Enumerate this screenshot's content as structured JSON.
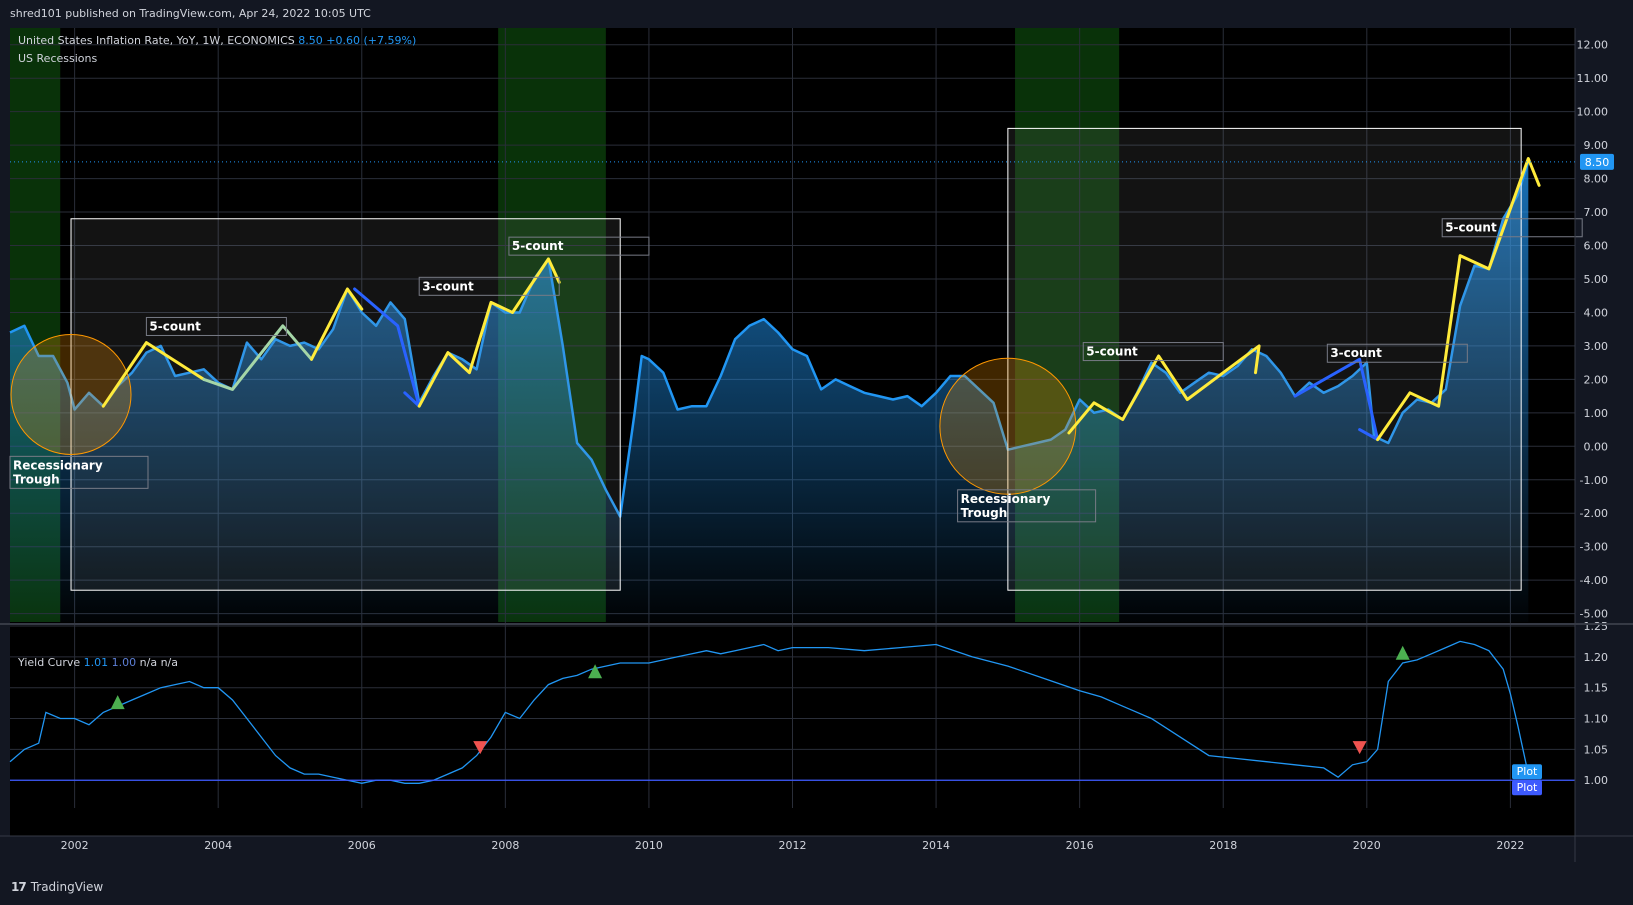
{
  "header": {
    "publisher": "shred101 published on TradingView.com, Apr 24, 2022 10:05 UTC"
  },
  "main_legend": {
    "symbol": "United States Inflation Rate, YoY, 1W, ECONOMICS",
    "last": "8.50",
    "change": "+0.60 (+7.59%)",
    "overlay": "US Recessions"
  },
  "yield_legend": {
    "name": "Yield Curve",
    "v1": "1.01",
    "v2": "1.00",
    "v3": "n/a",
    "v4": "n/a"
  },
  "footer": {
    "brand": "TradingView"
  },
  "colors": {
    "line": "#2196f3",
    "recession": "#0b3b0b",
    "wave_yellow": "#ffeb3b",
    "wave_green": "#a5d6a7",
    "wave_blue": "#2962ff",
    "up_marker": "#4caf50",
    "down_marker": "#ef5350",
    "price_label": "#2196f3"
  },
  "chart_data": [
    {
      "type": "area",
      "title": "United States Inflation Rate, YoY",
      "xlim": [
        2001.1,
        2022.9
      ],
      "ylim": [
        -5.25,
        12.5
      ],
      "y_ticks": [
        "12.00",
        "11.00",
        "10.00",
        "9.00",
        "8.00",
        "7.00",
        "6.00",
        "5.00",
        "4.00",
        "3.00",
        "2.00",
        "1.00",
        "0.00",
        "-1.00",
        "-2.00",
        "-3.00",
        "-4.00",
        "-5.00"
      ],
      "x_ticks": [
        "2002",
        "2004",
        "2006",
        "2008",
        "2010",
        "2012",
        "2014",
        "2016",
        "2018",
        "2020",
        "2022"
      ],
      "last_value_label": "8.50",
      "last_value": 8.5,
      "recessions": [
        [
          2001.1,
          2001.8
        ],
        [
          2007.9,
          2009.4
        ],
        [
          2015.1,
          2016.55
        ]
      ],
      "series": [
        {
          "x": [
            2001.1,
            2001.3,
            2001.5,
            2001.7,
            2001.9,
            2002.0,
            2002.2,
            2002.4,
            2002.6,
            2002.8,
            2003.0,
            2003.2,
            2003.4,
            2003.6,
            2003.8,
            2004.0,
            2004.2,
            2004.4,
            2004.6,
            2004.8,
            2005.0,
            2005.2,
            2005.4,
            2005.6,
            2005.8,
            2006.0,
            2006.2,
            2006.4,
            2006.6,
            2006.8,
            2007.0,
            2007.2,
            2007.4,
            2007.6,
            2007.8,
            2008.0,
            2008.2,
            2008.4,
            2008.6,
            2008.8,
            2009.0,
            2009.2,
            2009.4,
            2009.6,
            2009.8,
            2009.9,
            2010.0,
            2010.2,
            2010.4,
            2010.6,
            2010.8,
            2011.0,
            2011.2,
            2011.4,
            2011.6,
            2011.8,
            2012.0,
            2012.2,
            2012.4,
            2012.6,
            2012.8,
            2013.0,
            2013.2,
            2013.4,
            2013.6,
            2013.8,
            2014.0,
            2014.2,
            2014.4,
            2014.6,
            2014.8,
            2015.0,
            2015.2,
            2015.4,
            2015.6,
            2015.8,
            2016.0,
            2016.2,
            2016.4,
            2016.6,
            2016.8,
            2017.0,
            2017.2,
            2017.4,
            2017.6,
            2017.8,
            2018.0,
            2018.2,
            2018.4,
            2018.6,
            2018.8,
            2019.0,
            2019.2,
            2019.4,
            2019.6,
            2019.8,
            2020.0,
            2020.1,
            2020.3,
            2020.5,
            2020.7,
            2020.9,
            2021.1,
            2021.3,
            2021.5,
            2021.7,
            2021.9,
            2022.1,
            2022.25
          ],
          "values": [
            3.4,
            3.6,
            2.7,
            2.7,
            1.9,
            1.1,
            1.6,
            1.2,
            1.8,
            2.2,
            2.8,
            3.0,
            2.1,
            2.2,
            2.3,
            1.9,
            1.7,
            3.1,
            2.6,
            3.2,
            3.0,
            3.1,
            2.9,
            3.5,
            4.7,
            4.0,
            3.6,
            4.3,
            3.8,
            1.3,
            2.1,
            2.8,
            2.6,
            2.3,
            4.3,
            4.0,
            4.0,
            5.0,
            5.6,
            3.0,
            0.1,
            -0.4,
            -1.3,
            -2.1,
            1.0,
            2.7,
            2.6,
            2.2,
            1.1,
            1.2,
            1.2,
            2.1,
            3.2,
            3.6,
            3.8,
            3.4,
            2.9,
            2.7,
            1.7,
            2.0,
            1.8,
            1.6,
            1.5,
            1.4,
            1.5,
            1.2,
            1.6,
            2.1,
            2.1,
            1.7,
            1.3,
            -0.1,
            0.0,
            0.1,
            0.2,
            0.5,
            1.4,
            1.0,
            1.1,
            0.8,
            1.6,
            2.5,
            2.2,
            1.6,
            1.9,
            2.2,
            2.1,
            2.4,
            2.9,
            2.7,
            2.2,
            1.5,
            1.9,
            1.6,
            1.8,
            2.1,
            2.5,
            0.3,
            0.1,
            1.0,
            1.4,
            1.3,
            1.7,
            4.2,
            5.4,
            5.3,
            6.8,
            7.5,
            8.5
          ]
        }
      ],
      "annotations": [
        {
          "text": "5-count",
          "x": 2003.0,
          "y": 3.85
        },
        {
          "text": "3-count",
          "x": 2006.8,
          "y": 5.05
        },
        {
          "text": "5-count",
          "x": 2008.05,
          "y": 6.25
        },
        {
          "text": "5-count",
          "x": 2016.05,
          "y": 3.1
        },
        {
          "text": "3-count",
          "x": 2019.45,
          "y": 3.05
        },
        {
          "text": "5-count",
          "x": 2021.05,
          "y": 6.8
        },
        {
          "text": "Recessionary\nTrough",
          "x": 2001.1,
          "y": -0.3
        },
        {
          "text": "Recessionary\nTrough",
          "x": 2014.3,
          "y": -1.3
        }
      ]
    },
    {
      "type": "line",
      "title": "Yield Curve",
      "xlim": [
        2001.1,
        2022.9
      ],
      "ylim": [
        0.955,
        1.25
      ],
      "y_ticks": [
        "1.25",
        "1.20",
        "1.15",
        "1.10",
        "1.05",
        "1.00"
      ],
      "baseline": 1.0,
      "end_labels": [
        "Plot",
        "Plot"
      ],
      "series": [
        {
          "x": [
            2001.1,
            2001.3,
            2001.5,
            2001.6,
            2001.8,
            2002.0,
            2002.2,
            2002.4,
            2002.6,
            2002.8,
            2003.0,
            2003.2,
            2003.4,
            2003.6,
            2003.8,
            2004.0,
            2004.2,
            2004.4,
            2004.6,
            2004.8,
            2005.0,
            2005.2,
            2005.4,
            2005.6,
            2005.8,
            2006.0,
            2006.2,
            2006.4,
            2006.6,
            2006.8,
            2007.0,
            2007.2,
            2007.4,
            2007.6,
            2007.8,
            2008.0,
            2008.2,
            2008.4,
            2008.6,
            2008.8,
            2009.0,
            2009.2,
            2009.4,
            2009.6,
            2009.8,
            2010.0,
            2010.2,
            2010.4,
            2010.6,
            2010.8,
            2011.0,
            2011.2,
            2011.4,
            2011.6,
            2011.8,
            2012.0,
            2012.5,
            2013.0,
            2013.5,
            2014.0,
            2014.5,
            2015.0,
            2015.5,
            2016.0,
            2016.3,
            2016.6,
            2017.0,
            2017.4,
            2017.8,
            2018.2,
            2018.6,
            2019.0,
            2019.4,
            2019.6,
            2019.8,
            2020.0,
            2020.15,
            2020.3,
            2020.5,
            2020.7,
            2020.9,
            2021.1,
            2021.3,
            2021.5,
            2021.7,
            2021.9,
            2022.0,
            2022.1,
            2022.25
          ],
          "values": [
            1.03,
            1.05,
            1.06,
            1.11,
            1.1,
            1.1,
            1.09,
            1.11,
            1.12,
            1.13,
            1.14,
            1.15,
            1.155,
            1.16,
            1.15,
            1.15,
            1.13,
            1.1,
            1.07,
            1.04,
            1.02,
            1.01,
            1.01,
            1.005,
            1.0,
            0.995,
            1.0,
            1.0,
            0.995,
            0.995,
            1.0,
            1.01,
            1.02,
            1.04,
            1.07,
            1.11,
            1.1,
            1.13,
            1.155,
            1.165,
            1.17,
            1.18,
            1.185,
            1.19,
            1.19,
            1.19,
            1.195,
            1.2,
            1.205,
            1.21,
            1.205,
            1.21,
            1.215,
            1.22,
            1.21,
            1.215,
            1.215,
            1.21,
            1.215,
            1.22,
            1.2,
            1.185,
            1.165,
            1.145,
            1.135,
            1.12,
            1.1,
            1.07,
            1.04,
            1.035,
            1.03,
            1.025,
            1.02,
            1.005,
            1.025,
            1.03,
            1.05,
            1.16,
            1.19,
            1.195,
            1.205,
            1.215,
            1.225,
            1.22,
            1.21,
            1.18,
            1.14,
            1.09,
            1.01
          ]
        }
      ],
      "markers": [
        {
          "type": "up",
          "x": 2002.6
        },
        {
          "type": "down",
          "x": 2007.65
        },
        {
          "type": "up",
          "x": 2009.25
        },
        {
          "type": "down",
          "x": 2019.9
        },
        {
          "type": "up",
          "x": 2020.5
        }
      ]
    }
  ]
}
